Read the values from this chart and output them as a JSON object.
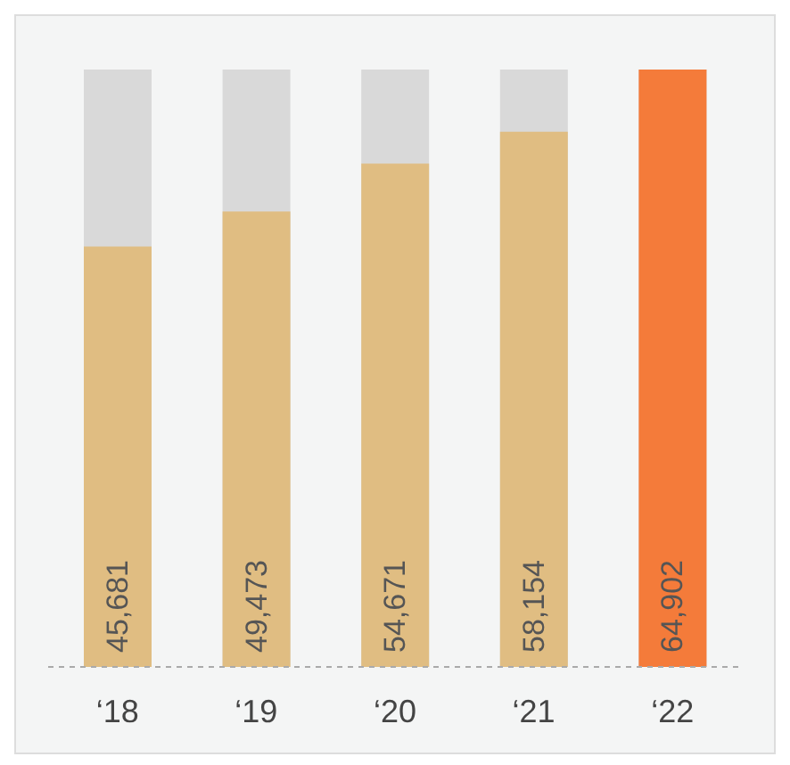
{
  "chart_data": {
    "type": "bar",
    "categories": [
      "‘18",
      "‘19",
      "‘20",
      "‘21",
      "‘22"
    ],
    "values": [
      45681,
      49473,
      54671,
      58154,
      64902
    ],
    "colors": [
      "#e0bd82",
      "#e0bd82",
      "#e0bd82",
      "#e0bd82",
      "#f47b3a"
    ],
    "value_labels": [
      "45,681",
      "49,473",
      "54,671",
      "58,154",
      "64,902"
    ],
    "grid": false,
    "legend": false
  }
}
